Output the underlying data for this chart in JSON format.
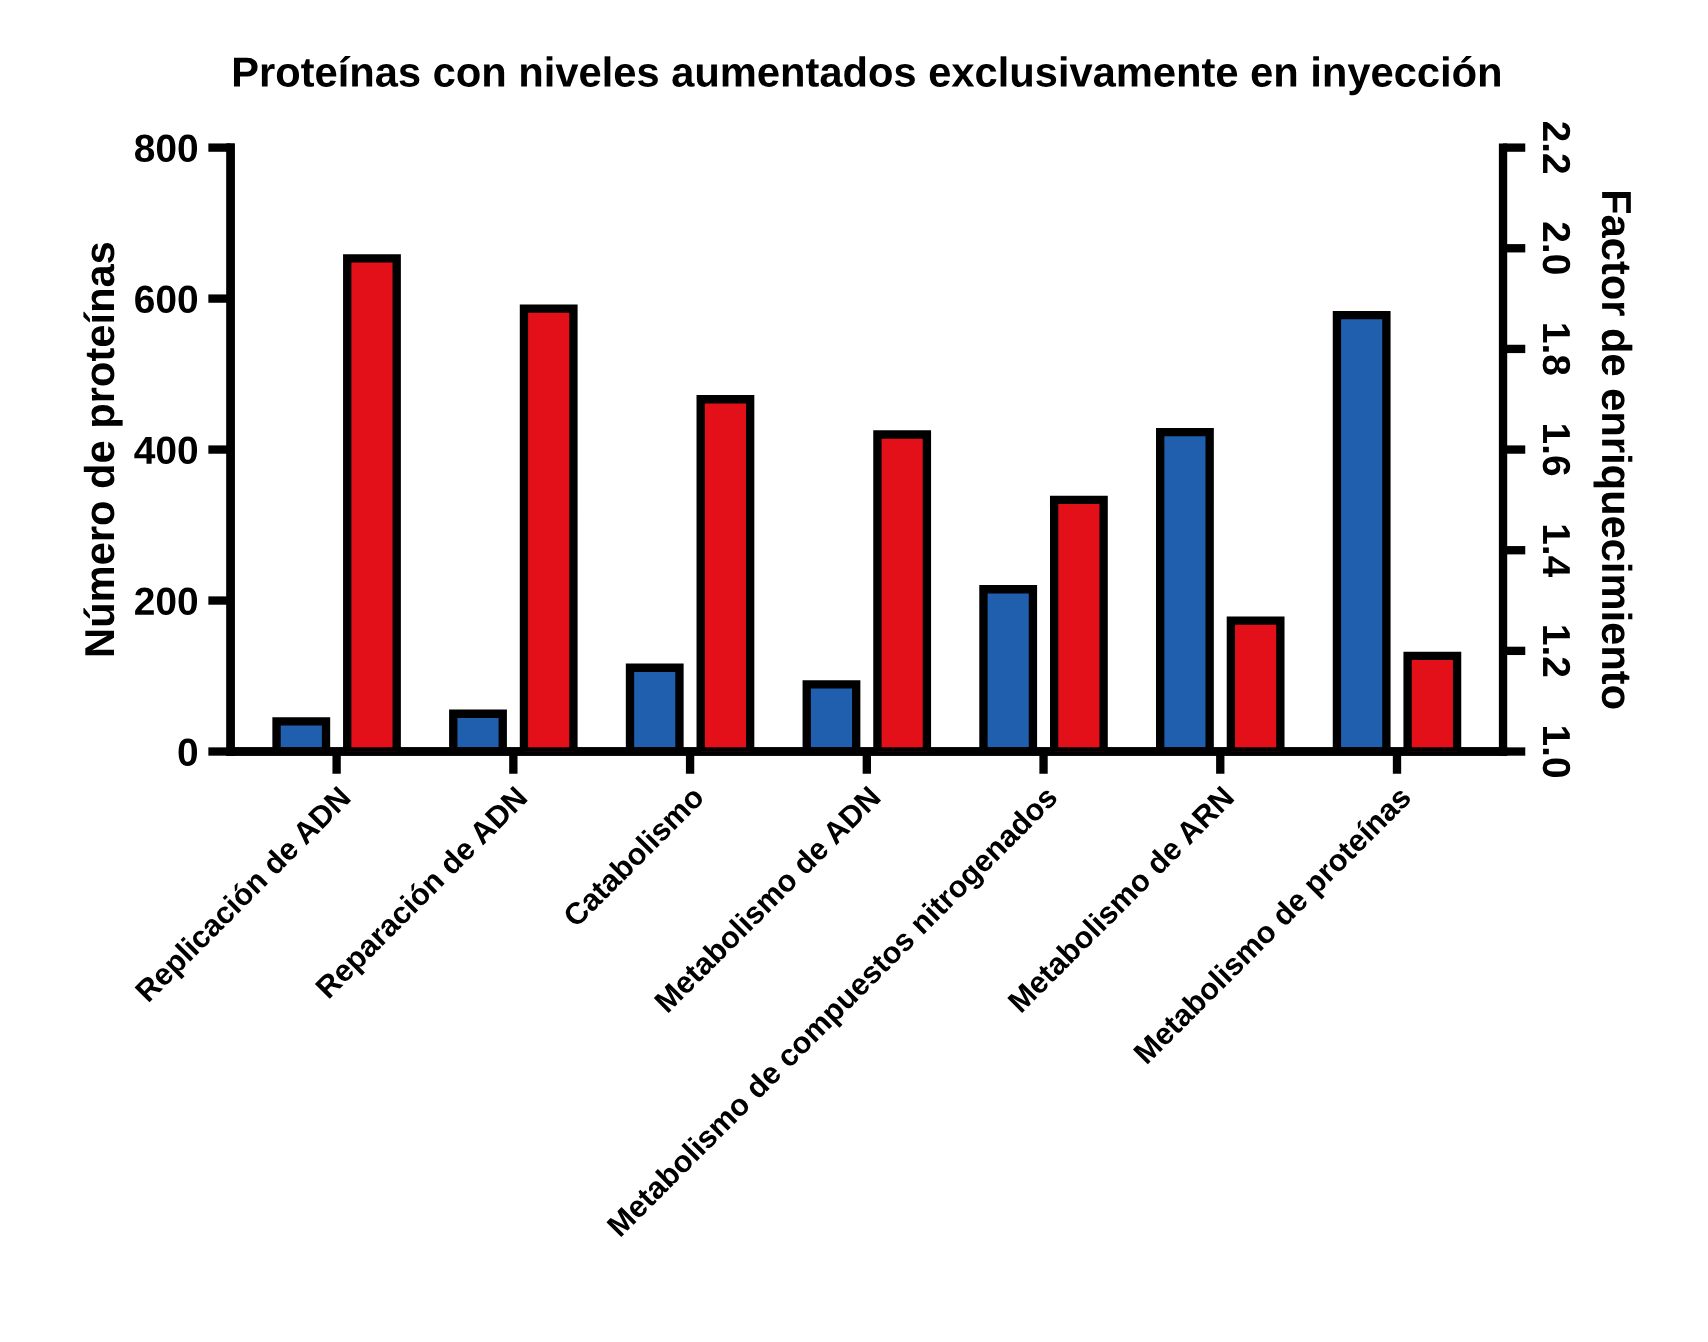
{
  "chart_data": {
    "type": "bar",
    "title": "Proteínas con niveles aumentados exclusivamente en inyección",
    "ylabel": "Número de proteínas",
    "y2label": "Factor de enriquecimiento",
    "categories": [
      "Replicación de ADN",
      "Reparación de ADN",
      "Catabolismo",
      "Metabolismo de ADN",
      "Metabolismo de compuestos nitrogenados",
      "Metabolismo de ARN",
      "Metabolismo de proteínas"
    ],
    "series": [
      {
        "color": "#1f5fae",
        "values": [
          40,
          50,
          111,
          89,
          215,
          423,
          578
        ]
      },
      {
        "color": "#e3101a",
        "axis": "y2",
        "values": [
          1.98,
          1.88,
          1.7,
          1.63,
          1.5,
          1.26,
          1.19
        ]
      }
    ],
    "ylim": [
      0,
      800
    ],
    "yticks": [
      0,
      200,
      400,
      600,
      800
    ],
    "y2lim": [
      1.0,
      2.2
    ],
    "y2ticks": [
      {
        "value": 1.0,
        "label": "1.0"
      },
      {
        "value": 1.2,
        "label": "1.2"
      },
      {
        "value": 1.4,
        "label": "1.4"
      },
      {
        "value": 1.6,
        "label": "1.6"
      },
      {
        "value": 1.8,
        "label": "1.8"
      },
      {
        "value": 2.0,
        "label": "2.0"
      },
      {
        "value": 2.2,
        "label": "2.2"
      }
    ],
    "grid": false,
    "legend": false
  }
}
